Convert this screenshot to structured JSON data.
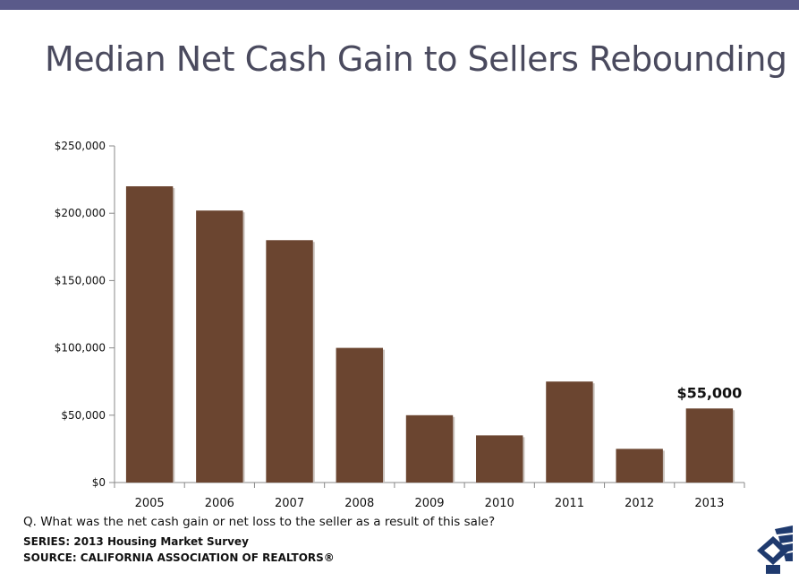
{
  "header": {
    "title": "Median Net Cash Gain to Sellers Rebounding"
  },
  "footer": {
    "question": "Q. What was the net cash gain or net loss to the seller as a result of this sale?",
    "series": "SERIES: 2013 Housing Market Survey",
    "source": "SOURCE:  CALIFORNIA ASSOCIATION OF REALTORS®"
  },
  "colors": {
    "bar": "#6b4530",
    "top_bar": "#5a5a8a",
    "title": "#4a4a5e",
    "logo": "#1f3a6e"
  },
  "logo": {
    "icon": "car-logo-icon"
  },
  "chart_data": {
    "type": "bar",
    "title": "",
    "xlabel": "",
    "ylabel": "",
    "categories": [
      "2005",
      "2006",
      "2007",
      "2008",
      "2009",
      "2010",
      "2011",
      "2012",
      "2013"
    ],
    "values": [
      220000,
      202000,
      180000,
      100000,
      50000,
      35000,
      75000,
      25000,
      55000
    ],
    "ylim": [
      0,
      250000
    ],
    "yticks": [
      0,
      50000,
      100000,
      150000,
      200000,
      250000
    ],
    "ytick_labels": [
      "$0",
      "$50,000",
      "$100,000",
      "$150,000",
      "$200,000",
      "$250,000"
    ],
    "annotations": [
      {
        "category": "2013",
        "text": "$55,000"
      }
    ],
    "grid": false,
    "legend": "none"
  }
}
